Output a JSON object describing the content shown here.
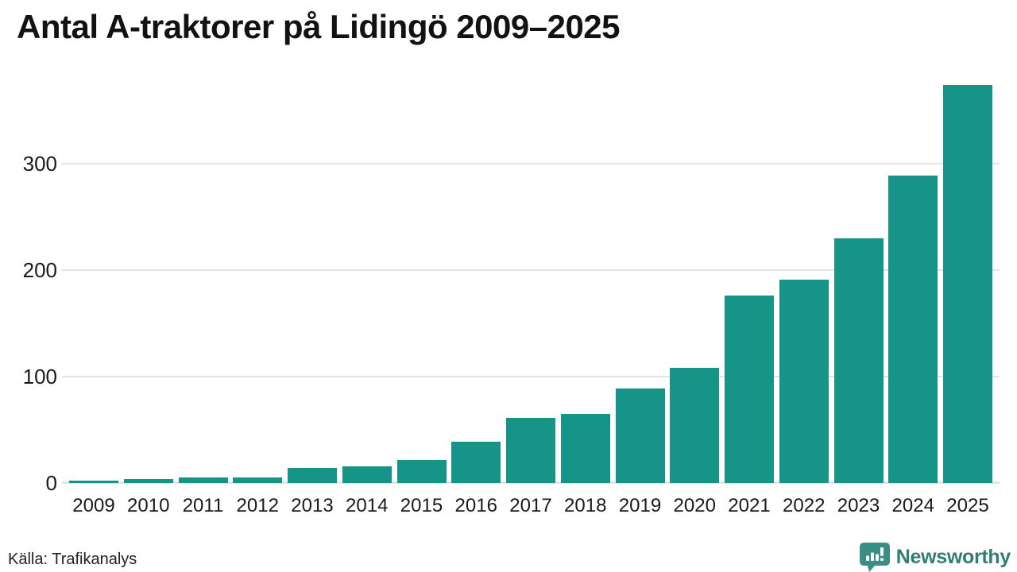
{
  "title": "Antal A-traktorer på Lidingö 2009–2025",
  "source_note": "Källa: Trafikanalys",
  "branding": {
    "name": "Newsworthy"
  },
  "colors": {
    "bar": "#169487",
    "grid": "#e3e3e3",
    "title_text": "#121212",
    "axis_text": "#1a1a1a",
    "brand_icon": "#3d8c85",
    "brand_text": "#2f7d73"
  },
  "chart_data": {
    "type": "bar",
    "title": "Antal A-traktorer på Lidingö 2009–2025",
    "categories": [
      "2009",
      "2010",
      "2011",
      "2012",
      "2013",
      "2014",
      "2015",
      "2016",
      "2017",
      "2018",
      "2019",
      "2020",
      "2021",
      "2022",
      "2023",
      "2024",
      "2025"
    ],
    "values": [
      2,
      4,
      5,
      5,
      14,
      16,
      22,
      39,
      61,
      65,
      89,
      108,
      176,
      191,
      230,
      289,
      374
    ],
    "xlabel": "",
    "ylabel": "",
    "ylim": [
      0,
      380
    ],
    "yticks": [
      0,
      100,
      200,
      300
    ],
    "grid": true,
    "legend": false,
    "bar_color": "#169487",
    "source": "Källa: Trafikanalys"
  }
}
